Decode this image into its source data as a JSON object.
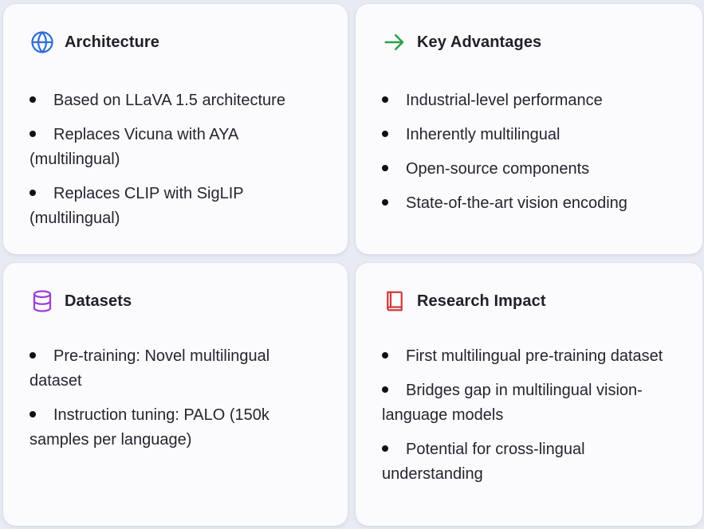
{
  "colors": {
    "architecture_icon": "#2f6fd8",
    "advantages_icon": "#2aa04a",
    "datasets_icon": "#9b3fd6",
    "impact_icon": "#d23a3a"
  },
  "cards": {
    "architecture": {
      "icon": "globe-icon",
      "title": "Architecture",
      "items": [
        "Based on LLaVA 1.5 architecture",
        "Replaces Vicuna with AYA (multilingual)",
        "Replaces CLIP with SigLIP (multilingual)"
      ]
    },
    "advantages": {
      "icon": "arrow-right-icon",
      "title": "Key Advantages",
      "items": [
        "Industrial-level performance",
        "Inherently multilingual",
        "Open-source components",
        "State-of-the-art vision encoding"
      ]
    },
    "datasets": {
      "icon": "database-icon",
      "title": "Datasets",
      "items": [
        "Pre-training: Novel multilingual dataset",
        "Instruction tuning: PALO (150k samples per language)"
      ]
    },
    "impact": {
      "icon": "book-icon",
      "title": "Research Impact",
      "items": [
        "First multilingual pre-training dataset",
        "Bridges gap in multilingual vision-language models",
        "Potential for cross-lingual understanding"
      ]
    }
  }
}
